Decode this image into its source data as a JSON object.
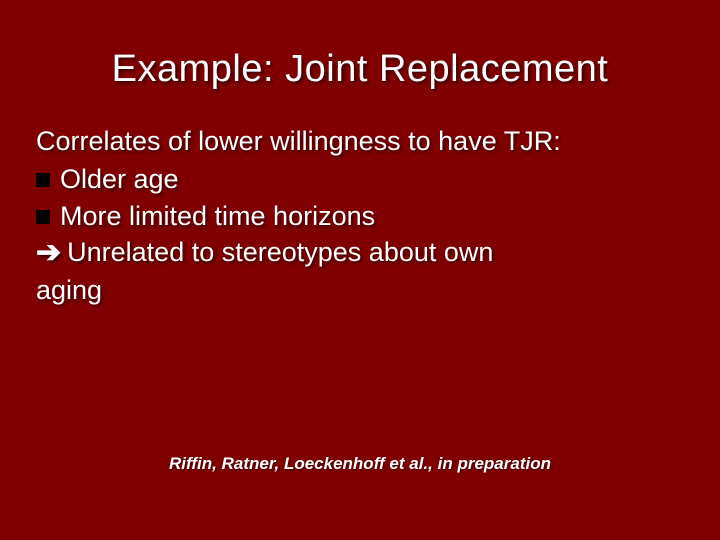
{
  "colors": {
    "background": "#800000",
    "text": "#ffffff",
    "bullet": "#000000",
    "shadow": "rgba(0,0,0,0.6)"
  },
  "typography": {
    "title_font": "Verdana",
    "title_size_pt": 38,
    "title_weight": "400",
    "body_font": "Verdana",
    "body_size_pt": 27,
    "citation_font": "Arial",
    "citation_size_pt": 17,
    "citation_weight": "bold",
    "citation_style": "italic"
  },
  "title": "Example: Joint Replacement",
  "lead": "Correlates of lower willingness to have TJR:",
  "bullets": [
    {
      "text": "Older age"
    },
    {
      "text": "More limited time horizons"
    }
  ],
  "arrow_line": "Unrelated to stereotypes about own",
  "arrow_symbol": "➔",
  "wrap_line": "aging",
  "citation": "Riffin, Ratner, Loeckenhoff et al., in preparation"
}
